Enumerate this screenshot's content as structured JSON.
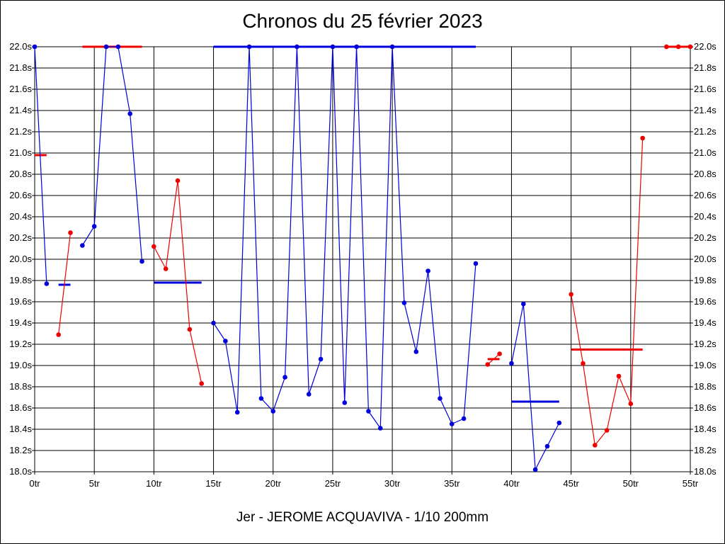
{
  "chart_data": {
    "type": "line",
    "title": "Chronos du 25 février 2023",
    "subtitle": "Jer - JEROME ACQUAVIVA - 1/10 200mm",
    "xlabel": "",
    "ylabel": "",
    "xlim": [
      0,
      55
    ],
    "ylim": [
      18.0,
      22.0
    ],
    "x_ticks": [
      0,
      5,
      10,
      15,
      20,
      25,
      30,
      35,
      40,
      45,
      50,
      55
    ],
    "x_tick_labels": [
      "0tr",
      "5tr",
      "10tr",
      "15tr",
      "20tr",
      "25tr",
      "30tr",
      "35tr",
      "40tr",
      "45tr",
      "50tr",
      "55tr"
    ],
    "y_ticks": [
      18.0,
      18.2,
      18.4,
      18.6,
      18.8,
      19.0,
      19.2,
      19.4,
      19.6,
      19.8,
      20.0,
      20.2,
      20.4,
      20.6,
      20.8,
      21.0,
      21.2,
      21.4,
      21.6,
      21.8,
      22.0
    ],
    "y_tick_labels": [
      "18.0s",
      "18.2s",
      "18.4s",
      "18.6s",
      "18.8s",
      "19.0s",
      "19.2s",
      "19.4s",
      "19.6s",
      "19.8s",
      "20.0s",
      "20.2s",
      "20.4s",
      "20.6s",
      "20.8s",
      "21.0s",
      "21.2s",
      "21.4s",
      "21.6s",
      "21.8s",
      "22.0s"
    ],
    "grid": true,
    "colors": {
      "blue": "#0000dd",
      "red": "#ee0000",
      "grid": "#000000"
    },
    "segments": [
      {
        "color": "blue",
        "points": [
          [
            0,
            22.0
          ],
          [
            1,
            19.77
          ]
        ],
        "mean": {
          "x": [
            2,
            3
          ],
          "y": 19.76
        }
      },
      {
        "color": "red",
        "points": [
          [
            2,
            19.29
          ],
          [
            3,
            20.25
          ]
        ],
        "mean": {
          "x": [
            0,
            1
          ],
          "y": 20.98
        }
      },
      {
        "color": "blue",
        "points": [
          [
            4,
            20.13
          ],
          [
            5,
            20.31
          ],
          [
            6,
            22.0
          ],
          [
            7,
            22.0
          ],
          [
            8,
            21.37
          ],
          [
            9,
            19.98
          ]
        ],
        "mean": {
          "x": [
            10,
            14
          ],
          "y": 19.78
        }
      },
      {
        "color": "red",
        "points": [
          [
            10,
            20.12
          ],
          [
            11,
            19.91
          ],
          [
            12,
            20.74
          ],
          [
            13,
            19.34
          ],
          [
            14,
            18.83
          ]
        ],
        "mean": {
          "x": [
            4,
            9
          ],
          "y": 22.0
        }
      },
      {
        "color": "blue",
        "points": [
          [
            15,
            19.4
          ],
          [
            16,
            19.23
          ],
          [
            17,
            18.56
          ],
          [
            18,
            22.0
          ],
          [
            19,
            18.69
          ],
          [
            20,
            18.57
          ],
          [
            21,
            18.89
          ],
          [
            22,
            22.0
          ],
          [
            23,
            18.73
          ],
          [
            24,
            19.06
          ],
          [
            25,
            22.0
          ],
          [
            26,
            18.65
          ],
          [
            27,
            22.0
          ],
          [
            28,
            18.57
          ],
          [
            29,
            18.41
          ],
          [
            30,
            22.0
          ],
          [
            31,
            19.59
          ],
          [
            32,
            19.13
          ],
          [
            33,
            19.89
          ],
          [
            34,
            18.69
          ],
          [
            35,
            18.45
          ],
          [
            36,
            18.5
          ],
          [
            37,
            19.96
          ]
        ],
        "mean": {
          "x": [
            15,
            37
          ],
          "y": 22.0
        }
      },
      {
        "color": "red",
        "points": [
          [
            38,
            19.01
          ],
          [
            39,
            19.11
          ]
        ],
        "mean": {
          "x": [
            38,
            39
          ],
          "y": 19.06
        }
      },
      {
        "color": "blue",
        "points": [
          [
            40,
            19.02
          ],
          [
            41,
            19.58
          ],
          [
            42,
            18.02
          ],
          [
            43,
            18.24
          ],
          [
            44,
            18.46
          ]
        ],
        "mean": {
          "x": [
            40,
            44
          ],
          "y": 18.66
        }
      },
      {
        "color": "red",
        "points": [
          [
            45,
            19.67
          ],
          [
            46,
            19.02
          ],
          [
            47,
            18.25
          ],
          [
            48,
            18.39
          ],
          [
            49,
            18.9
          ],
          [
            50,
            18.64
          ],
          [
            51,
            21.14
          ]
        ],
        "mean": {
          "x": [
            45,
            51
          ],
          "y": 19.15
        }
      },
      {
        "color": "red",
        "points": [
          [
            53,
            22.0
          ],
          [
            54,
            22.0
          ],
          [
            55,
            22.0
          ]
        ],
        "mean": {
          "x": [
            53,
            55
          ],
          "y": 22.0
        }
      }
    ]
  }
}
